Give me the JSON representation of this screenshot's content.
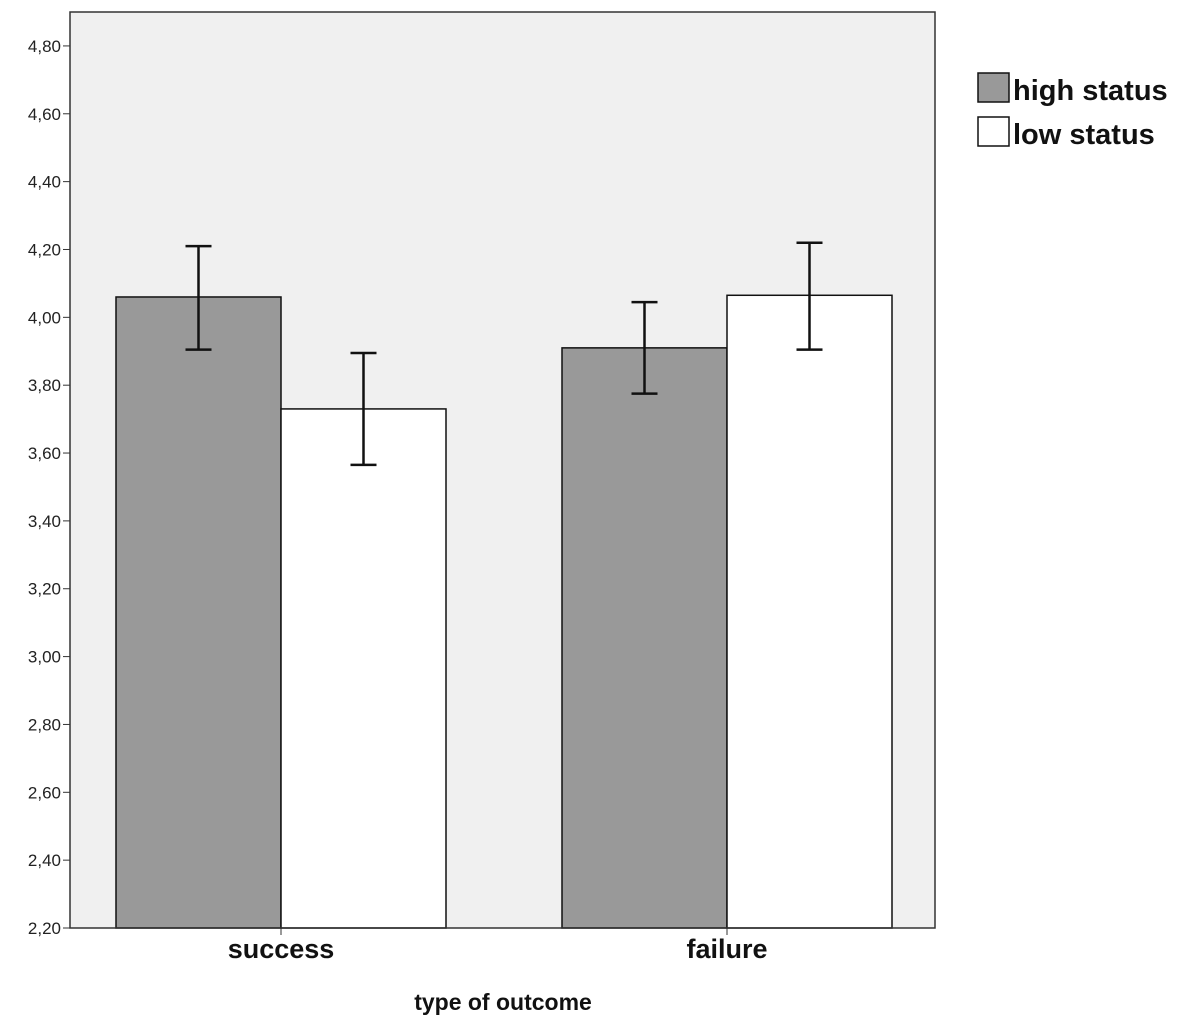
{
  "chart_data": {
    "type": "bar",
    "categories": [
      "success",
      "failure"
    ],
    "series": [
      {
        "name": "high status",
        "color": "#999999",
        "values": [
          4.06,
          3.91
        ],
        "error_low": [
          3.905,
          3.775
        ],
        "error_high": [
          4.21,
          4.045
        ]
      },
      {
        "name": "low status",
        "color": "#ffffff",
        "values": [
          3.73,
          4.065
        ],
        "error_low": [
          3.565,
          3.905
        ],
        "error_high": [
          3.895,
          4.22
        ]
      }
    ],
    "xlabel": "type of outcome",
    "ylabel": "",
    "ylim": [
      2.2,
      4.9
    ],
    "yticks": [
      "2,20",
      "2,40",
      "2,60",
      "2,80",
      "3,00",
      "3,20",
      "3,40",
      "3,60",
      "3,80",
      "4,00",
      "4,20",
      "4,40",
      "4,60",
      "4,80"
    ],
    "ytick_values": [
      2.2,
      2.4,
      2.6,
      2.8,
      3.0,
      3.2,
      3.4,
      3.6,
      3.8,
      4.0,
      4.2,
      4.4,
      4.6,
      4.8
    ],
    "grid": false,
    "legend_placement": "top-right-outside",
    "plot_background": "#f0f0f0"
  }
}
